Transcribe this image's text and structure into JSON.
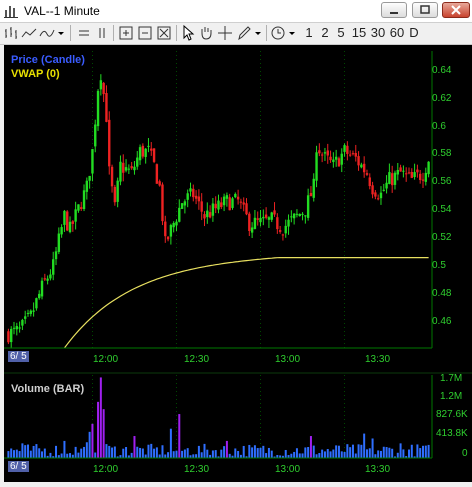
{
  "window": {
    "title": "VAL--1 Minute"
  },
  "toolbar": {
    "intervals": [
      "1",
      "2",
      "5",
      "15",
      "30",
      "60",
      "D"
    ]
  },
  "colors": {
    "up": "#22dd22",
    "down": "#ee2222",
    "vwap": "#e8e060",
    "volume": "#2f6fff",
    "volume_highlight": "#a020f0",
    "axis_text": "#2fcf2f",
    "grid": "#007700"
  },
  "price_pane": {
    "label_price": "Price (Candle)",
    "label_vwap": "VWAP (0)",
    "y_ticks": [
      "0.64",
      "0.62",
      "0.6",
      "0.58",
      "0.56",
      "0.54",
      "0.52",
      "0.5",
      "0.48",
      "0.46"
    ]
  },
  "volume_pane": {
    "label": "Volume (BAR)",
    "y_ticks": [
      "1.7M",
      "1.2M",
      "827.6K",
      "413.8K",
      "0"
    ]
  },
  "x_axis": {
    "date_label": "6/ 5",
    "ticks": [
      "12:00",
      "12:30",
      "13:00",
      "13:30"
    ]
  },
  "chart_data": {
    "type": "candlestick",
    "x_unit": "minute index (09:30 start)",
    "price_range": [
      0.448,
      0.655
    ],
    "volume_range": [
      0,
      1700000
    ],
    "price_anchors": [
      [
        0,
        0.458
      ],
      [
        4,
        0.46
      ],
      [
        8,
        0.47
      ],
      [
        12,
        0.49
      ],
      [
        16,
        0.505
      ],
      [
        20,
        0.54
      ],
      [
        22,
        0.53
      ],
      [
        25,
        0.545
      ],
      [
        28,
        0.56
      ],
      [
        30,
        0.585
      ],
      [
        32,
        0.63
      ],
      [
        33,
        0.64
      ],
      [
        35,
        0.61
      ],
      [
        36,
        0.57
      ],
      [
        38,
        0.545
      ],
      [
        40,
        0.575
      ],
      [
        44,
        0.57
      ],
      [
        47,
        0.585
      ],
      [
        50,
        0.585
      ],
      [
        52,
        0.575
      ],
      [
        54,
        0.56
      ],
      [
        56,
        0.52
      ],
      [
        58,
        0.53
      ],
      [
        62,
        0.55
      ],
      [
        66,
        0.555
      ],
      [
        70,
        0.54
      ],
      [
        74,
        0.545
      ],
      [
        78,
        0.55
      ],
      [
        82,
        0.55
      ],
      [
        86,
        0.535
      ],
      [
        90,
        0.535
      ],
      [
        94,
        0.537
      ],
      [
        98,
        0.532
      ],
      [
        102,
        0.538
      ],
      [
        106,
        0.545
      ],
      [
        109,
        0.56
      ],
      [
        110,
        0.59
      ],
      [
        113,
        0.58
      ],
      [
        116,
        0.575
      ],
      [
        120,
        0.585
      ],
      [
        124,
        0.58
      ],
      [
        128,
        0.57
      ],
      [
        130,
        0.56
      ],
      [
        133,
        0.555
      ],
      [
        136,
        0.565
      ],
      [
        140,
        0.57
      ],
      [
        144,
        0.565
      ],
      [
        148,
        0.57
      ],
      [
        150,
        0.58
      ]
    ],
    "vwap_start_index": 20,
    "volume_peaks": [
      [
        5,
        300000
      ],
      [
        20,
        350000
      ],
      [
        30,
        700000
      ],
      [
        32,
        1150000
      ],
      [
        33,
        1650000
      ],
      [
        34,
        1000000
      ],
      [
        45,
        450000
      ],
      [
        58,
        600000
      ],
      [
        61,
        900000
      ],
      [
        78,
        350000
      ],
      [
        108,
        450000
      ],
      [
        127,
        500000
      ],
      [
        130,
        400000
      ],
      [
        140,
        300000
      ],
      [
        148,
        250000
      ]
    ]
  }
}
